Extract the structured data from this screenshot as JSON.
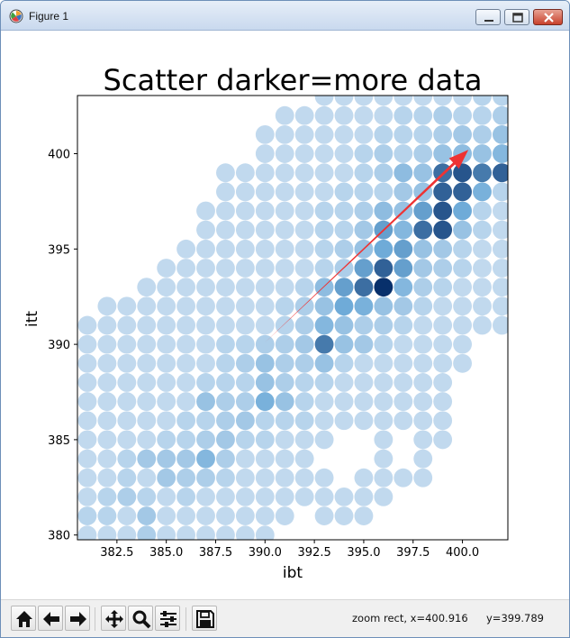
{
  "window": {
    "title": "Figure 1"
  },
  "icons": {
    "app": "matplotlib-logo-icon",
    "minimize": "minimize-icon",
    "maximize": "maximize-icon",
    "close": "close-icon"
  },
  "toolbar": {
    "buttons": [
      {
        "name": "home-button",
        "icon": "home-icon"
      },
      {
        "name": "back-button",
        "icon": "arrow-left-icon"
      },
      {
        "name": "forward-button",
        "icon": "arrow-right-icon"
      },
      {
        "name": "pan-button",
        "icon": "move-icon"
      },
      {
        "name": "zoom-button",
        "icon": "magnifier-icon"
      },
      {
        "name": "configure-subplots-button",
        "icon": "sliders-icon"
      },
      {
        "name": "save-button",
        "icon": "floppy-icon"
      }
    ],
    "status_mode": "zoom rect, x=400.916",
    "status_y": "y=399.789"
  },
  "chart_data": {
    "type": "scatter",
    "title": "Scatter darker=more data",
    "xlabel": "ibt",
    "ylabel": "itt",
    "xlim": [
      380.5,
      402.3
    ],
    "ylim": [
      379.75,
      403.05
    ],
    "xticks": [
      382.5,
      385.0,
      387.5,
      390.0,
      392.5,
      395.0,
      397.5,
      400.0
    ],
    "xtick_labels": [
      "382.5",
      "385.0",
      "387.5",
      "390.0",
      "392.5",
      "395.0",
      "397.5",
      "400.0"
    ],
    "yticks": [
      380,
      385,
      390,
      395,
      400
    ],
    "ytick_labels": [
      "380",
      "385",
      "390",
      "395",
      "400"
    ],
    "colormap": "Blues",
    "colors": {
      "min": "#d6e5f4",
      "mid": "#6fabd8",
      "max": "#08306b",
      "arrow": "#ee3333"
    },
    "marker_size_units": 0.95,
    "note_level": "count per grid point on a 0-1 scale (1 = darkest)",
    "rows": [
      {
        "y": 380,
        "x": [
          381,
          382,
          383,
          384,
          385,
          386,
          387,
          388,
          389,
          390
        ],
        "level": [
          0.1,
          0.1,
          0.1,
          0.2,
          0.1,
          0.1,
          0.1,
          0.1,
          0.1,
          0.1
        ]
      },
      {
        "y": 381,
        "x": [
          381,
          382,
          383,
          384,
          385,
          386,
          387,
          388,
          389,
          390,
          391,
          393,
          394,
          395
        ],
        "level": [
          0.15,
          0.15,
          0.1,
          0.25,
          0.1,
          0.1,
          0.1,
          0.1,
          0.1,
          0.1,
          0.1,
          0.1,
          0.1,
          0.1
        ]
      },
      {
        "y": 382,
        "x": [
          381,
          382,
          383,
          384,
          385,
          386,
          387,
          388,
          389,
          390,
          391,
          392,
          393,
          394,
          395,
          396
        ],
        "level": [
          0.1,
          0.15,
          0.2,
          0.15,
          0.1,
          0.15,
          0.1,
          0.1,
          0.1,
          0.1,
          0.1,
          0.1,
          0.1,
          0.1,
          0.1,
          0.1
        ]
      },
      {
        "y": 383,
        "x": [
          381,
          382,
          383,
          384,
          385,
          386,
          387,
          388,
          389,
          390,
          391,
          392,
          393,
          395,
          396,
          397,
          398
        ],
        "level": [
          0.1,
          0.1,
          0.15,
          0.1,
          0.25,
          0.2,
          0.2,
          0.15,
          0.1,
          0.1,
          0.1,
          0.1,
          0.1,
          0.1,
          0.1,
          0.1,
          0.1
        ]
      },
      {
        "y": 384,
        "x": [
          381,
          382,
          383,
          384,
          385,
          386,
          387,
          388,
          389,
          390,
          391,
          392,
          396,
          398
        ],
        "level": [
          0.1,
          0.1,
          0.15,
          0.25,
          0.25,
          0.25,
          0.4,
          0.2,
          0.1,
          0.1,
          0.1,
          0.1,
          0.1,
          0.1
        ]
      },
      {
        "y": 385,
        "x": [
          381,
          382,
          383,
          384,
          385,
          386,
          387,
          388,
          389,
          390,
          391,
          392,
          393,
          396,
          398,
          399
        ],
        "level": [
          0.1,
          0.1,
          0.1,
          0.1,
          0.15,
          0.15,
          0.2,
          0.25,
          0.15,
          0.15,
          0.1,
          0.1,
          0.1,
          0.1,
          0.1,
          0.1
        ]
      },
      {
        "y": 386,
        "x": [
          381,
          382,
          383,
          384,
          385,
          386,
          387,
          388,
          389,
          390,
          391,
          392,
          393,
          394,
          395,
          396,
          397,
          398,
          399
        ],
        "level": [
          0.1,
          0.1,
          0.1,
          0.1,
          0.1,
          0.15,
          0.15,
          0.2,
          0.25,
          0.15,
          0.15,
          0.15,
          0.1,
          0.1,
          0.1,
          0.1,
          0.1,
          0.1,
          0.1
        ]
      },
      {
        "y": 387,
        "x": [
          381,
          382,
          383,
          384,
          385,
          386,
          387,
          388,
          389,
          390,
          391,
          392,
          393,
          394,
          395,
          396,
          397,
          398,
          399
        ],
        "level": [
          0.1,
          0.1,
          0.1,
          0.1,
          0.1,
          0.1,
          0.3,
          0.2,
          0.2,
          0.45,
          0.3,
          0.15,
          0.1,
          0.1,
          0.1,
          0.1,
          0.1,
          0.1,
          0.1
        ]
      },
      {
        "y": 388,
        "x": [
          381,
          382,
          383,
          384,
          385,
          386,
          387,
          388,
          389,
          390,
          391,
          392,
          393,
          394,
          395,
          396,
          397,
          398,
          399
        ],
        "level": [
          0.1,
          0.1,
          0.1,
          0.1,
          0.1,
          0.1,
          0.15,
          0.15,
          0.15,
          0.3,
          0.2,
          0.15,
          0.15,
          0.1,
          0.1,
          0.1,
          0.1,
          0.1,
          0.1
        ]
      },
      {
        "y": 389,
        "x": [
          381,
          382,
          383,
          384,
          385,
          386,
          387,
          388,
          389,
          390,
          391,
          392,
          393,
          394,
          395,
          396,
          397,
          398,
          399,
          400
        ],
        "level": [
          0.1,
          0.1,
          0.1,
          0.1,
          0.1,
          0.1,
          0.1,
          0.15,
          0.2,
          0.3,
          0.2,
          0.2,
          0.3,
          0.15,
          0.1,
          0.1,
          0.1,
          0.1,
          0.1,
          0.1
        ]
      },
      {
        "y": 390,
        "x": [
          381,
          382,
          383,
          384,
          385,
          386,
          387,
          388,
          389,
          390,
          391,
          392,
          393,
          394,
          395,
          396,
          397,
          398,
          399,
          400
        ],
        "level": [
          0.1,
          0.1,
          0.1,
          0.1,
          0.1,
          0.1,
          0.1,
          0.15,
          0.15,
          0.2,
          0.2,
          0.25,
          0.7,
          0.3,
          0.25,
          0.15,
          0.1,
          0.1,
          0.1,
          0.1
        ]
      },
      {
        "y": 391,
        "x": [
          381,
          382,
          383,
          384,
          385,
          386,
          387,
          388,
          389,
          390,
          391,
          392,
          393,
          394,
          395,
          396,
          397,
          398,
          399,
          400,
          401,
          402
        ],
        "level": [
          0.1,
          0.1,
          0.1,
          0.1,
          0.1,
          0.1,
          0.1,
          0.1,
          0.1,
          0.1,
          0.15,
          0.2,
          0.4,
          0.3,
          0.2,
          0.2,
          0.15,
          0.1,
          0.1,
          0.1,
          0.1,
          0.1
        ]
      },
      {
        "y": 392,
        "x": [
          382,
          383,
          384,
          385,
          386,
          387,
          388,
          389,
          390,
          391,
          392,
          393,
          394,
          395,
          396,
          397,
          398,
          399,
          400,
          401,
          402
        ],
        "level": [
          0.1,
          0.1,
          0.1,
          0.1,
          0.1,
          0.1,
          0.1,
          0.1,
          0.1,
          0.15,
          0.2,
          0.3,
          0.5,
          0.45,
          0.3,
          0.25,
          0.15,
          0.1,
          0.1,
          0.1,
          0.1
        ]
      },
      {
        "y": 393,
        "x": [
          384,
          385,
          386,
          387,
          388,
          389,
          390,
          391,
          392,
          393,
          394,
          395,
          396,
          397,
          398,
          399,
          400,
          401,
          402
        ],
        "level": [
          0.1,
          0.1,
          0.1,
          0.1,
          0.1,
          0.1,
          0.1,
          0.1,
          0.15,
          0.35,
          0.55,
          0.75,
          1.0,
          0.4,
          0.2,
          0.15,
          0.1,
          0.1,
          0.1
        ]
      },
      {
        "y": 394,
        "x": [
          385,
          386,
          387,
          388,
          389,
          390,
          391,
          392,
          393,
          394,
          395,
          396,
          397,
          398,
          399,
          400,
          401,
          402
        ],
        "level": [
          0.1,
          0.1,
          0.1,
          0.1,
          0.1,
          0.1,
          0.1,
          0.1,
          0.15,
          0.2,
          0.55,
          0.8,
          0.55,
          0.25,
          0.2,
          0.15,
          0.1,
          0.1
        ]
      },
      {
        "y": 395,
        "x": [
          386,
          387,
          388,
          389,
          390,
          391,
          392,
          393,
          394,
          395,
          396,
          397,
          398,
          399,
          400,
          401,
          402
        ],
        "level": [
          0.1,
          0.1,
          0.1,
          0.1,
          0.1,
          0.1,
          0.1,
          0.15,
          0.2,
          0.3,
          0.5,
          0.55,
          0.3,
          0.25,
          0.15,
          0.1,
          0.1
        ]
      },
      {
        "y": 396,
        "x": [
          387,
          388,
          389,
          390,
          391,
          392,
          393,
          394,
          395,
          396,
          397,
          398,
          399,
          400,
          401,
          402
        ],
        "level": [
          0.1,
          0.1,
          0.1,
          0.1,
          0.1,
          0.1,
          0.15,
          0.15,
          0.25,
          0.55,
          0.4,
          0.75,
          0.85,
          0.3,
          0.15,
          0.1
        ]
      },
      {
        "y": 397,
        "x": [
          387,
          388,
          389,
          390,
          391,
          392,
          393,
          394,
          395,
          396,
          397,
          398,
          399,
          400,
          401,
          402
        ],
        "level": [
          0.1,
          0.1,
          0.1,
          0.1,
          0.1,
          0.1,
          0.15,
          0.15,
          0.2,
          0.35,
          0.3,
          0.55,
          0.85,
          0.5,
          0.15,
          0.1
        ]
      },
      {
        "y": 398,
        "x": [
          388,
          389,
          390,
          391,
          392,
          393,
          394,
          395,
          396,
          397,
          398,
          399,
          400,
          401,
          402
        ],
        "level": [
          0.1,
          0.1,
          0.1,
          0.1,
          0.1,
          0.1,
          0.15,
          0.15,
          0.15,
          0.25,
          0.3,
          0.8,
          0.8,
          0.45,
          0.15
        ]
      },
      {
        "y": 399,
        "x": [
          388,
          389,
          390,
          391,
          392,
          393,
          394,
          395,
          396,
          397,
          398,
          399,
          400,
          401,
          402
        ],
        "level": [
          0.1,
          0.1,
          0.1,
          0.1,
          0.1,
          0.1,
          0.1,
          0.15,
          0.2,
          0.35,
          0.3,
          0.75,
          0.85,
          0.7,
          0.8
        ]
      },
      {
        "y": 400,
        "x": [
          390,
          391,
          392,
          393,
          394,
          395,
          396,
          397,
          398,
          399,
          400,
          401,
          402
        ],
        "level": [
          0.1,
          0.1,
          0.1,
          0.1,
          0.1,
          0.15,
          0.2,
          0.15,
          0.2,
          0.3,
          0.35,
          0.3,
          0.4
        ]
      },
      {
        "y": 401,
        "x": [
          390,
          391,
          392,
          393,
          394,
          395,
          396,
          397,
          398,
          399,
          400,
          401,
          402
        ],
        "level": [
          0.1,
          0.1,
          0.1,
          0.1,
          0.1,
          0.1,
          0.15,
          0.15,
          0.15,
          0.2,
          0.25,
          0.2,
          0.3
        ]
      },
      {
        "y": 402,
        "x": [
          391,
          392,
          393,
          394,
          395,
          396,
          397,
          398,
          399,
          400,
          401,
          402
        ],
        "level": [
          0.1,
          0.1,
          0.1,
          0.1,
          0.1,
          0.1,
          0.15,
          0.15,
          0.2,
          0.15,
          0.15,
          0.2
        ]
      },
      {
        "y": 403,
        "x": [
          393,
          394,
          395,
          396,
          397,
          398,
          399,
          400,
          401,
          402
        ],
        "level": [
          0.1,
          0.1,
          0.1,
          0.1,
          0.1,
          0.1,
          0.1,
          0.1,
          0.15,
          0.15
        ]
      }
    ],
    "annotation": {
      "type": "arrow",
      "from": [
        390.0,
        390.1
      ],
      "to": [
        400.3,
        400.2
      ]
    }
  }
}
